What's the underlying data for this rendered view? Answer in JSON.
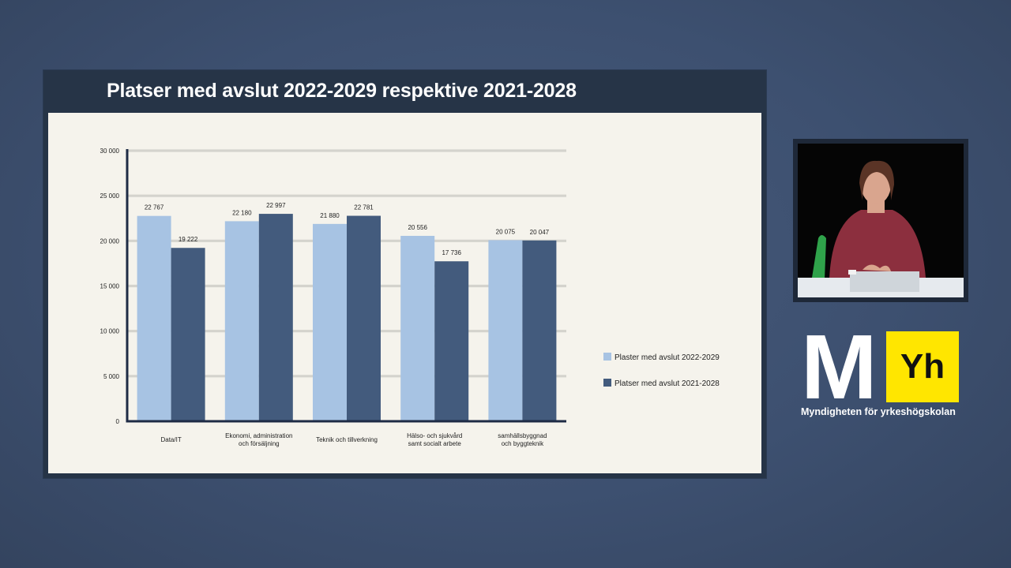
{
  "slide": {
    "title": "Platser med avslut 2022-2029 respektive 2021-2028"
  },
  "logo": {
    "letter_m": "M",
    "letters_yh": "Yh",
    "caption": "Myndigheten för yrkeshögskolan",
    "accent_color": "#ffe600"
  },
  "colors": {
    "series_light": "#a7c3e3",
    "series_dark": "#435b7d",
    "axis": "#1e2b45",
    "grid": "#d4d3cd"
  },
  "chart_data": {
    "type": "bar",
    "categories": [
      [
        "Data/IT"
      ],
      [
        "Ekonomi, administration",
        "och försäljning"
      ],
      [
        "Teknik och tillverkning"
      ],
      [
        "Hälso- och sjukvård",
        "samt socialt arbete"
      ],
      [
        "samhällsbyggnad",
        "och byggteknik"
      ]
    ],
    "series": [
      {
        "name": "Plaster med avslut 2022-2029",
        "values": [
          22767,
          22180,
          21880,
          20556,
          20075
        ],
        "labels": [
          "22 767",
          "22 180",
          "21 880",
          "20 556",
          "20 075"
        ]
      },
      {
        "name": "Platser med avslut 2021-2028",
        "values": [
          19222,
          22997,
          22781,
          17736,
          20047
        ],
        "labels": [
          "19 222",
          "22 997",
          "22 781",
          "17 736",
          "20 047"
        ]
      }
    ],
    "yticks": [
      0,
      5000,
      10000,
      15000,
      20000,
      25000,
      30000
    ],
    "ytick_labels": [
      "0",
      "5 000",
      "10 000",
      "15 000",
      "20 000",
      "25 000",
      "30 000"
    ],
    "ylim": [
      0,
      30000
    ],
    "grid": true,
    "legend_position": "right"
  }
}
